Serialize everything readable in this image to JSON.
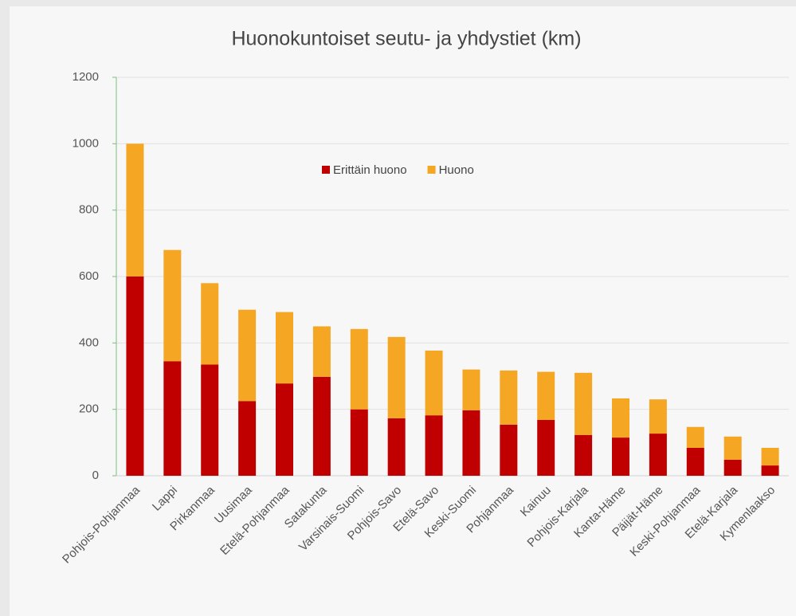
{
  "chart_data": {
    "type": "stacked_bar",
    "title": "Huonokuntoiset seutu- ja yhdystiet (km)",
    "categories": [
      "Pohjois-Pohjanmaa",
      "Lappi",
      "Pirkanmaa",
      "Uusimaa",
      "Etelä-Pohjanmaa",
      "Satakunta",
      "Varsinais-Suomi",
      "Pohjois-Savo",
      "Etelä-Savo",
      "Keski-Suomi",
      "Pohjanmaa",
      "Kainuu",
      "Pohjois-Karjala",
      "Kanta-Häme",
      "Päijät-Häme",
      "Keski-Pohjanmaa",
      "Etelä-Karjala",
      "Kymenlaakso"
    ],
    "series": [
      {
        "name": "Erittäin huono",
        "color": "#c00000",
        "values": [
          600,
          345,
          335,
          225,
          278,
          298,
          200,
          173,
          182,
          197,
          154,
          168,
          123,
          115,
          127,
          84,
          48,
          31
        ]
      },
      {
        "name": "Huono",
        "color": "#f5a623",
        "values": [
          400,
          335,
          245,
          275,
          215,
          152,
          242,
          245,
          195,
          123,
          163,
          145,
          187,
          118,
          103,
          63,
          70,
          53
        ]
      }
    ],
    "ylim": [
      0,
      1200
    ],
    "yticks": [
      0,
      200,
      400,
      600,
      800,
      1000,
      1200
    ],
    "grid": true
  }
}
